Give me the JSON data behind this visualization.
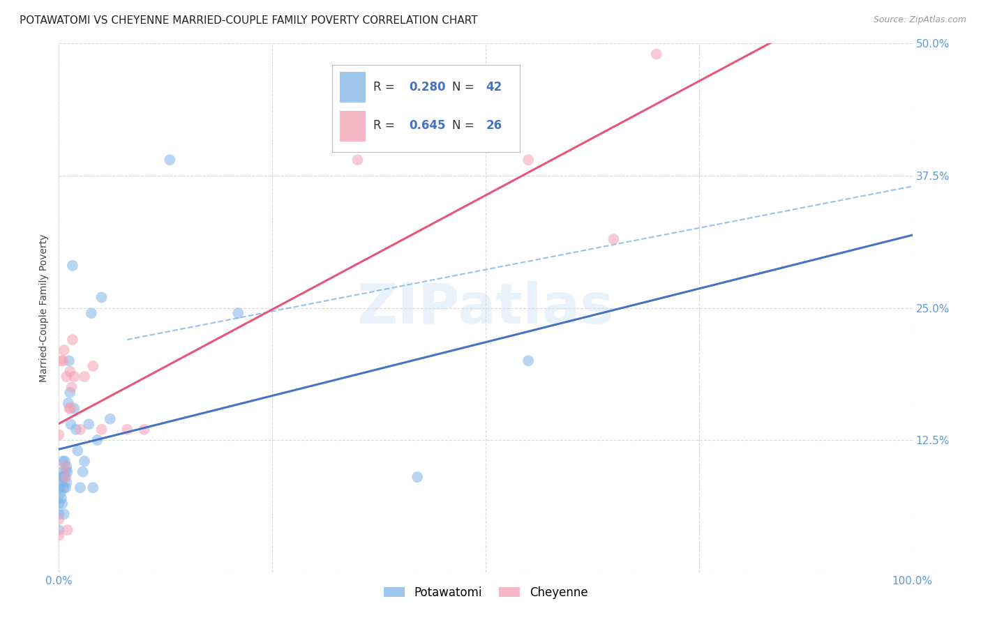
{
  "title": "POTAWATOMI VS CHEYENNE MARRIED-COUPLE FAMILY POVERTY CORRELATION CHART",
  "source": "Source: ZipAtlas.com",
  "ylabel": "Married-Couple Family Poverty",
  "watermark": "ZIPatlas",
  "xlim": [
    0,
    1.0
  ],
  "ylim": [
    0,
    0.5
  ],
  "xticks": [
    0.0,
    0.25,
    0.5,
    0.75,
    1.0
  ],
  "yticks": [
    0.0,
    0.125,
    0.25,
    0.375,
    0.5
  ],
  "ytick_labels": [
    "",
    "12.5%",
    "25.0%",
    "37.5%",
    "50.0%"
  ],
  "xtick_labels": [
    "0.0%",
    "",
    "",
    "",
    "100.0%"
  ],
  "tick_color": "#5b9bd5",
  "grid_color": "#d9d9d9",
  "potawatomi_color": "#7fb3e8",
  "cheyenne_color": "#f4a0b5",
  "potawatomi_line_color": "#4472c4",
  "cheyenne_line_color": "#e8547a",
  "conf_line_color": "#7fb3e8",
  "R_potawatomi": 0.28,
  "N_potawatomi": 42,
  "R_cheyenne": 0.645,
  "N_cheyenne": 26,
  "legend_box_color": "#cccccc",
  "legend_R_N_color": "#4472c4",
  "potawatomi_x": [
    0.0,
    0.0,
    0.0,
    0.0,
    0.002,
    0.002,
    0.003,
    0.003,
    0.004,
    0.004,
    0.005,
    0.005,
    0.006,
    0.006,
    0.007,
    0.007,
    0.008,
    0.008,
    0.009,
    0.009,
    0.01,
    0.011,
    0.012,
    0.013,
    0.014,
    0.016,
    0.018,
    0.02,
    0.022,
    0.025,
    0.028,
    0.03,
    0.035,
    0.038,
    0.04,
    0.045,
    0.05,
    0.06,
    0.13,
    0.21,
    0.42,
    0.55
  ],
  "potawatomi_y": [
    0.04,
    0.055,
    0.065,
    0.08,
    0.075,
    0.09,
    0.07,
    0.085,
    0.065,
    0.095,
    0.09,
    0.105,
    0.055,
    0.08,
    0.09,
    0.105,
    0.08,
    0.095,
    0.085,
    0.1,
    0.095,
    0.16,
    0.2,
    0.17,
    0.14,
    0.29,
    0.155,
    0.135,
    0.115,
    0.08,
    0.095,
    0.105,
    0.14,
    0.245,
    0.08,
    0.125,
    0.26,
    0.145,
    0.39,
    0.245,
    0.09,
    0.2
  ],
  "cheyenne_x": [
    0.0,
    0.0,
    0.0,
    0.003,
    0.005,
    0.006,
    0.007,
    0.008,
    0.009,
    0.01,
    0.012,
    0.013,
    0.014,
    0.015,
    0.016,
    0.018,
    0.025,
    0.03,
    0.04,
    0.05,
    0.08,
    0.1,
    0.35,
    0.55,
    0.65,
    0.7
  ],
  "cheyenne_y": [
    0.035,
    0.05,
    0.13,
    0.2,
    0.2,
    0.21,
    0.1,
    0.09,
    0.185,
    0.04,
    0.155,
    0.19,
    0.155,
    0.175,
    0.22,
    0.185,
    0.135,
    0.185,
    0.195,
    0.135,
    0.135,
    0.135,
    0.39,
    0.39,
    0.315,
    0.49
  ],
  "conf_line_x": [
    0.08,
    1.0
  ],
  "conf_line_y": [
    0.22,
    0.365
  ],
  "marker_size": 130,
  "marker_alpha": 0.55,
  "background_color": "#ffffff",
  "title_fontsize": 11,
  "axis_label_fontsize": 10,
  "tick_fontsize": 11,
  "legend_fontsize": 12
}
